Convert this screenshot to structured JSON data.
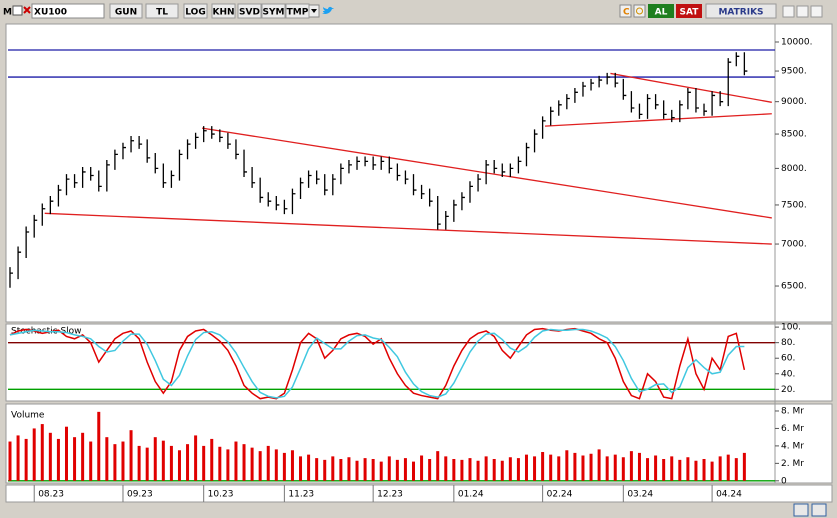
{
  "toolbar": {
    "menu": "M",
    "symbol": "XU100",
    "buttons": [
      "GUN",
      "TL",
      "LOG",
      "KHN",
      "SVD",
      "SYM",
      "TMP"
    ],
    "buy": "AL",
    "sell": "SAT",
    "brand": "MATRIKS"
  },
  "chart_data": [
    {
      "type": "ohlc",
      "color": "#000000",
      "log_scale": true,
      "categories": [
        null,
        null,
        null,
        "08.23",
        null,
        null,
        null,
        null,
        null,
        null,
        null,
        null,
        null,
        null,
        "09.23",
        null,
        null,
        null,
        null,
        null,
        null,
        null,
        null,
        null,
        "10.23",
        null,
        null,
        null,
        null,
        null,
        null,
        null,
        null,
        null,
        "11.23",
        null,
        null,
        null,
        null,
        null,
        null,
        null,
        null,
        null,
        null,
        "12.23",
        null,
        null,
        null,
        null,
        null,
        null,
        null,
        null,
        null,
        "01.24",
        null,
        null,
        null,
        null,
        null,
        null,
        null,
        null,
        null,
        null,
        "02.24",
        null,
        null,
        null,
        null,
        null,
        null,
        null,
        null,
        null,
        "03.24",
        null,
        null,
        null,
        null,
        null,
        null,
        null,
        null,
        null,
        null,
        "04.24",
        null,
        null,
        null,
        null
      ],
      "high": [
        6720,
        6970,
        7220,
        7370,
        7520,
        7620,
        7770,
        7920,
        7920,
        8020,
        8020,
        7970,
        8120,
        8270,
        8370,
        8470,
        8470,
        8420,
        8220,
        8070,
        7970,
        8270,
        8420,
        8520,
        8620,
        8620,
        8570,
        8520,
        8420,
        8270,
        8020,
        7870,
        7670,
        7620,
        7570,
        7720,
        7870,
        7970,
        7970,
        7920,
        7920,
        8070,
        8120,
        8170,
        8170,
        8170,
        8170,
        8170,
        8070,
        7970,
        7920,
        7770,
        7720,
        7620,
        7420,
        7570,
        7670,
        7820,
        7920,
        8120,
        8120,
        8070,
        8070,
        8170,
        8370,
        8570,
        8770,
        8920,
        9020,
        9120,
        9220,
        9320,
        9370,
        9420,
        9470,
        9470,
        9370,
        9170,
        8970,
        9120,
        9120,
        9020,
        8870,
        9020,
        9220,
        9220,
        8970,
        9170,
        9170,
        9720,
        9820,
        9820
      ],
      "low": [
        6480,
        6580,
        6830,
        7080,
        7230,
        7380,
        7480,
        7630,
        7730,
        7730,
        7830,
        7680,
        7680,
        7980,
        8130,
        8230,
        8280,
        8080,
        7930,
        7730,
        7730,
        7830,
        8130,
        8280,
        8380,
        8430,
        8380,
        8280,
        8130,
        7880,
        7730,
        7530,
        7480,
        7430,
        7380,
        7380,
        7580,
        7730,
        7780,
        7630,
        7630,
        7780,
        7930,
        7980,
        8030,
        7980,
        7980,
        7930,
        7830,
        7780,
        7630,
        7580,
        7480,
        7180,
        7180,
        7280,
        7430,
        7530,
        7680,
        7780,
        7930,
        7880,
        7880,
        7930,
        8030,
        8230,
        8430,
        8630,
        8780,
        8880,
        8980,
        9080,
        9180,
        9230,
        9280,
        9230,
        9030,
        8830,
        8730,
        8730,
        8880,
        8730,
        8680,
        8680,
        8880,
        8830,
        8780,
        8780,
        8930,
        8930,
        9580,
        9430
      ],
      "close": [
        6650,
        6900,
        7150,
        7300,
        7450,
        7550,
        7700,
        7850,
        7800,
        7950,
        7900,
        7750,
        8050,
        8200,
        8300,
        8400,
        8350,
        8150,
        8000,
        7800,
        7900,
        8200,
        8350,
        8450,
        8550,
        8500,
        8450,
        8350,
        8200,
        7950,
        7800,
        7600,
        7550,
        7500,
        7450,
        7650,
        7800,
        7900,
        7850,
        7700,
        7850,
        8000,
        8050,
        8100,
        8100,
        8050,
        8100,
        8000,
        7900,
        7850,
        7700,
        7650,
        7550,
        7250,
        7350,
        7500,
        7600,
        7750,
        7850,
        8050,
        8000,
        7950,
        8000,
        8100,
        8300,
        8500,
        8700,
        8850,
        8950,
        9050,
        9150,
        9250,
        9300,
        9350,
        9400,
        9300,
        9100,
        8900,
        8800,
        9050,
        8950,
        8800,
        8750,
        8950,
        9150,
        8900,
        8850,
        9100,
        9000,
        9650,
        9750,
        9500
      ],
      "ylim": [
        6100,
        10250
      ],
      "yticks": [
        {
          "value": 6500,
          "label": "6500."
        },
        {
          "value": 7000,
          "label": "7000."
        },
        {
          "value": 7500,
          "label": "7500."
        },
        {
          "value": 8000,
          "label": "8000."
        },
        {
          "value": 8500,
          "label": "8500."
        },
        {
          "value": 9000,
          "label": "9000."
        },
        {
          "value": 9500,
          "label": "9500."
        },
        {
          "value": 10000,
          "label": "10000."
        }
      ],
      "hlines": [
        {
          "value": 9860,
          "color": "#1c1ca8"
        },
        {
          "value": 9400,
          "color": "#1c1ca8"
        }
      ],
      "trendlines": [
        {
          "from": [
            4.3,
            7390
          ],
          "to": [
            94.4,
            7000
          ],
          "color": "#e02020"
        },
        {
          "from": [
            23.8,
            8590
          ],
          "to": [
            94.4,
            7330
          ],
          "color": "#e02020"
        },
        {
          "from": [
            66.3,
            8620
          ],
          "to": [
            94.4,
            8810
          ],
          "color": "#e02020"
        },
        {
          "from": [
            74.4,
            9460
          ],
          "to": [
            94.4,
            8990
          ],
          "color": "#e02020"
        }
      ]
    },
    {
      "type": "line",
      "title": "Stochastic Slow",
      "series": [
        {
          "color": "#e00000",
          "values": [
            90,
            95,
            97,
            95,
            92,
            94,
            96,
            88,
            85,
            90,
            80,
            55,
            70,
            85,
            92,
            95,
            85,
            55,
            30,
            15,
            30,
            70,
            88,
            95,
            97,
            90,
            82,
            70,
            50,
            25,
            15,
            8,
            10,
            8,
            15,
            45,
            80,
            92,
            85,
            60,
            70,
            85,
            90,
            92,
            88,
            78,
            85,
            60,
            40,
            25,
            15,
            12,
            10,
            8,
            25,
            50,
            70,
            85,
            92,
            95,
            88,
            70,
            60,
            75,
            90,
            97,
            98,
            96,
            95,
            97,
            98,
            95,
            92,
            85,
            80,
            60,
            30,
            12,
            8,
            40,
            30,
            10,
            8,
            50,
            85,
            40,
            20,
            60,
            45,
            88,
            92,
            45
          ]
        },
        {
          "color": "#40c8e0",
          "values": [
            90,
            92,
            94,
            96,
            95,
            94,
            94,
            93,
            90,
            88,
            85,
            75,
            68,
            70,
            82,
            91,
            91,
            78,
            57,
            33,
            25,
            38,
            63,
            84,
            93,
            94,
            90,
            81,
            67,
            48,
            30,
            16,
            11,
            9,
            11,
            23,
            47,
            72,
            86,
            79,
            72,
            72,
            82,
            89,
            90,
            86,
            84,
            74,
            62,
            42,
            27,
            17,
            12,
            10,
            14,
            28,
            48,
            68,
            82,
            91,
            92,
            84,
            73,
            68,
            75,
            87,
            95,
            97,
            96,
            96,
            97,
            97,
            95,
            91,
            86,
            75,
            57,
            34,
            17,
            20,
            26,
            27,
            16,
            23,
            48,
            58,
            48,
            40,
            42,
            64,
            75,
            75
          ]
        }
      ],
      "ylim": [
        5,
        104
      ],
      "yticks": [
        {
          "value": 20,
          "label": "20."
        },
        {
          "value": 40,
          "label": "40."
        },
        {
          "value": 60,
          "label": "60."
        },
        {
          "value": 80,
          "label": "80."
        },
        {
          "value": 100,
          "label": "100."
        }
      ],
      "hlines": [
        {
          "value": 80,
          "color": "#800000"
        },
        {
          "value": 20,
          "color": "#00a000"
        }
      ]
    },
    {
      "type": "bar",
      "title": "Volume",
      "color": "#e00000",
      "values": [
        4.5,
        5.2,
        4.8,
        6.0,
        6.5,
        5.5,
        4.8,
        6.2,
        5.0,
        5.5,
        4.5,
        7.9,
        5.0,
        4.2,
        4.5,
        5.8,
        4.0,
        3.8,
        5.0,
        4.6,
        4.0,
        3.5,
        4.2,
        5.2,
        4.0,
        4.8,
        3.9,
        3.6,
        4.5,
        4.2,
        3.8,
        3.4,
        4.0,
        3.6,
        3.2,
        3.5,
        2.8,
        3.0,
        2.6,
        2.4,
        2.8,
        2.5,
        2.7,
        2.3,
        2.6,
        2.5,
        2.2,
        2.8,
        2.4,
        2.6,
        2.2,
        2.9,
        2.5,
        3.4,
        2.8,
        2.5,
        2.4,
        2.6,
        2.3,
        2.8,
        2.5,
        2.3,
        2.7,
        2.6,
        3.0,
        2.8,
        3.3,
        3.0,
        2.8,
        3.5,
        3.2,
        2.9,
        3.1,
        3.6,
        2.8,
        3.0,
        2.7,
        3.4,
        3.2,
        2.6,
        2.9,
        2.5,
        2.8,
        2.4,
        2.7,
        2.3,
        2.5,
        2.2,
        2.8,
        3.0,
        2.6,
        3.2
      ],
      "ylim": [
        -0.25,
        8.8
      ],
      "yticks": [
        0,
        {
          "value": 2,
          "label": "2. Mr"
        },
        {
          "value": 4,
          "label": "4. Mr"
        },
        {
          "value": 6,
          "label": "6. Mr"
        },
        {
          "value": 8,
          "label": "8. Mr"
        }
      ],
      "hlines": [
        {
          "value": 0,
          "color": "#00a000"
        }
      ]
    }
  ]
}
